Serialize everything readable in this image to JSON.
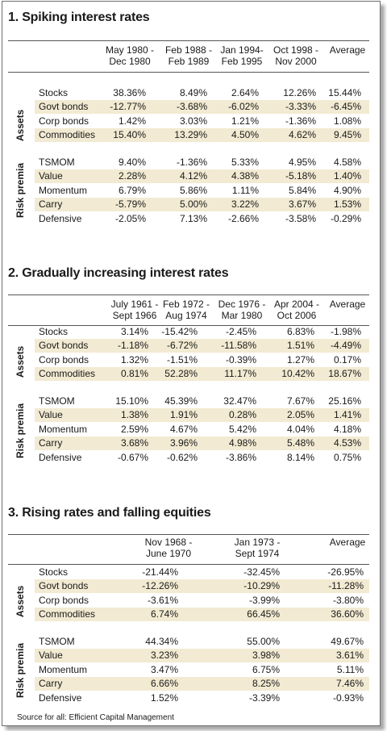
{
  "section1": {
    "title": "1. Spiking interest rates",
    "headers": [
      [
        "May 1980 -",
        "Dec 1980"
      ],
      [
        "Feb 1988 -",
        "Feb 1989"
      ],
      [
        "Jan 1994-",
        "Feb 1995"
      ],
      [
        "Oct 1998 -",
        "Nov 2000"
      ],
      [
        "",
        "Average"
      ]
    ],
    "groups": [
      {
        "label": "Assets",
        "rows": [
          {
            "name": "Stocks",
            "values": [
              "38.36%",
              "8.49%",
              "2.64%",
              "12.26%",
              "15.44%"
            ]
          },
          {
            "name": "Govt bonds",
            "values": [
              "-12.77%",
              "-3.68%",
              "-6.02%",
              "-3.33%",
              "-6.45%"
            ]
          },
          {
            "name": "Corp bonds",
            "values": [
              "1.42%",
              "3.03%",
              "1.21%",
              "-1.36%",
              "1.08%"
            ]
          },
          {
            "name": "Commodities",
            "values": [
              "15.40%",
              "13.29%",
              "4.50%",
              "4.62%",
              "9.45%"
            ]
          }
        ]
      },
      {
        "label": "Risk premia",
        "rows": [
          {
            "name": "TSMOM",
            "values": [
              "9.40%",
              "-1.36%",
              "5.33%",
              "4.95%",
              "4.58%"
            ]
          },
          {
            "name": "Value",
            "values": [
              "2.28%",
              "4.12%",
              "4.38%",
              "-5.18%",
              "1.40%"
            ]
          },
          {
            "name": "Momentum",
            "values": [
              "6.79%",
              "5.86%",
              "1.11%",
              "5.84%",
              "4.90%"
            ]
          },
          {
            "name": "Carry",
            "values": [
              "-5.79%",
              "5.00%",
              "3.22%",
              "3.67%",
              "1.53%"
            ]
          },
          {
            "name": "Defensive",
            "values": [
              "-2.05%",
              "7.13%",
              "-2.66%",
              "-3.58%",
              "-0.29%"
            ]
          }
        ]
      }
    ]
  },
  "section2": {
    "title": "2. Gradually increasing interest rates",
    "headers": [
      [
        "July 1961 -",
        "Sept 1966"
      ],
      [
        "Feb 1972 -",
        "Aug 1974"
      ],
      [
        "Dec 1976 -",
        "Mar 1980"
      ],
      [
        "Apr 2004 -",
        "Oct 2006"
      ],
      [
        "",
        "Average"
      ]
    ],
    "groups": [
      {
        "label": "Assets",
        "rows": [
          {
            "name": "Stocks",
            "values": [
              "3.14%",
              "-15.42%",
              "-2.45%",
              "6.83%",
              "-1.98%"
            ]
          },
          {
            "name": "Govt bonds",
            "values": [
              "-1.18%",
              "-6.72%",
              "-11.58%",
              "1.51%",
              "-4.49%"
            ]
          },
          {
            "name": "Corp bonds",
            "values": [
              "1.32%",
              "-1.51%",
              "-0.39%",
              "1.27%",
              "0.17%"
            ]
          },
          {
            "name": "Commodities",
            "values": [
              "0.81%",
              "52.28%",
              "11.17%",
              "10.42%",
              "18.67%"
            ]
          }
        ]
      },
      {
        "label": "Risk premia",
        "rows": [
          {
            "name": "TSMOM",
            "values": [
              "15.10%",
              "45.39%",
              "32.47%",
              "7.67%",
              "25.16%"
            ]
          },
          {
            "name": "Value",
            "values": [
              "1.38%",
              "1.91%",
              "0.28%",
              "2.05%",
              "1.41%"
            ]
          },
          {
            "name": "Momentum",
            "values": [
              "2.59%",
              "4.67%",
              "5.42%",
              "4.04%",
              "4.18%"
            ]
          },
          {
            "name": "Carry",
            "values": [
              "3.68%",
              "3.96%",
              "4.98%",
              "5.48%",
              "4.53%"
            ]
          },
          {
            "name": "Defensive",
            "values": [
              "-0.67%",
              "-0.62%",
              "-3.86%",
              "8.14%",
              "0.75%"
            ]
          }
        ]
      }
    ]
  },
  "section3": {
    "title": "3. Rising rates and falling equities",
    "headers": [
      [
        "Nov 1968 -",
        "June 1970"
      ],
      [
        "Jan 1973 -",
        "Sept 1974"
      ],
      [
        "",
        "Average"
      ]
    ],
    "groups": [
      {
        "label": "Assets",
        "rows": [
          {
            "name": "Stocks",
            "values": [
              "-21.44%",
              "-32.45%",
              "-26.95%"
            ]
          },
          {
            "name": "Govt bonds",
            "values": [
              "-12.26%",
              "-10.29%",
              "-11.28%"
            ]
          },
          {
            "name": "Corp bonds",
            "values": [
              "-3.61%",
              "-3.99%",
              "-3.80%"
            ]
          },
          {
            "name": "Commodities",
            "values": [
              "6.74%",
              "66.45%",
              "36.60%"
            ]
          }
        ]
      },
      {
        "label": "Risk premia",
        "rows": [
          {
            "name": "TSMOM",
            "values": [
              "44.34%",
              "55.00%",
              "49.67%"
            ]
          },
          {
            "name": "Value",
            "values": [
              "3.23%",
              "3.98%",
              "3.61%"
            ]
          },
          {
            "name": "Momentum",
            "values": [
              "3.47%",
              "6.75%",
              "5.11%"
            ]
          },
          {
            "name": "Carry",
            "values": [
              "6.66%",
              "8.25%",
              "7.46%"
            ]
          },
          {
            "name": "Defensive",
            "values": [
              "1.52%",
              "-3.39%",
              "-0.93%"
            ]
          }
        ]
      }
    ]
  },
  "source": "Source for all: Efficient Capital Management"
}
